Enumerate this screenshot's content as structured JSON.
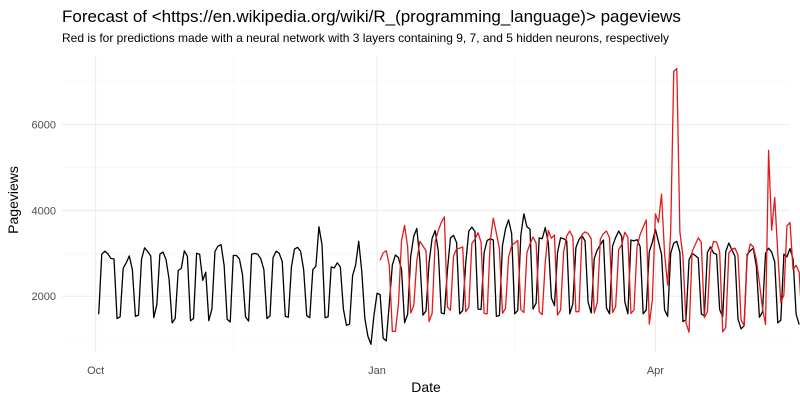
{
  "chart_data": {
    "type": "line",
    "title": "Forecast of <https://en.wikipedia.org/wiki/R_(programming_language)> pageviews",
    "subtitle": "Red is for predictions made with a neural network with 3 layers containing 9, 7, and 5 hidden neurons, respectively",
    "xlabel": "Date",
    "ylabel": "Pageviews",
    "x_ticks": [
      {
        "label": "Oct",
        "value": "2015-10-01"
      },
      {
        "label": "Jan",
        "value": "2016-01-01"
      },
      {
        "label": "Apr",
        "value": "2016-04-01"
      }
    ],
    "x_minor_ticks": [
      "2015-11-15",
      "2016-02-15"
    ],
    "y_ticks": [
      2000,
      4000,
      6000
    ],
    "y_minor_ticks": [
      1000,
      3000,
      5000,
      7000
    ],
    "xlim": [
      "2015-09-20",
      "2016-05-15"
    ],
    "ylim": [
      700,
      7600
    ],
    "grid": true,
    "series": [
      {
        "color": "#000000",
        "start": "2015-10-02",
        "values": [
          1580,
          2980,
          3050,
          2990,
          2880,
          2870,
          1480,
          1520,
          2650,
          2780,
          2940,
          2620,
          1530,
          1560,
          2860,
          3130,
          3040,
          2940,
          1500,
          1800,
          2980,
          3030,
          2860,
          2400,
          1380,
          1480,
          2600,
          2650,
          3060,
          2930,
          1430,
          1480,
          3000,
          2980,
          2370,
          2560,
          1430,
          1700,
          3040,
          3170,
          3200,
          2720,
          1460,
          1400,
          2950,
          2950,
          2870,
          2510,
          1520,
          1420,
          2980,
          3000,
          2980,
          2870,
          2620,
          1480,
          1540,
          2900,
          3050,
          3000,
          2810,
          1530,
          1510,
          2680,
          3100,
          3140,
          3050,
          2620,
          1550,
          1500,
          2620,
          2700,
          3620,
          3200,
          1500,
          1520,
          2680,
          2660,
          2780,
          2680,
          1700,
          1320,
          1350,
          2480,
          2730,
          3280,
          2580,
          1490,
          1070,
          880,
          1560,
          2070,
          2040,
          1020,
          960,
          1820,
          2730,
          2960,
          2900,
          2620,
          1380,
          1580,
          2930,
          3400,
          3580,
          2850,
          1560,
          1660,
          2780,
          3350,
          3530,
          3060,
          1610,
          1590,
          2600,
          3360,
          3420,
          3250,
          1590,
          1670,
          2780,
          3520,
          3610,
          3510,
          1700,
          1690,
          3020,
          3300,
          3340,
          3310,
          1530,
          1550,
          3180,
          3570,
          3780,
          3460,
          1590,
          1670,
          3420,
          3920,
          3620,
          3560,
          1700,
          1840,
          3360,
          3340,
          3600,
          3240,
          1960,
          1780,
          3020,
          3360,
          3340,
          3290,
          1590,
          1820,
          3130,
          3320,
          3410,
          3290,
          1860,
          1610,
          2880,
          3080,
          3200,
          3310,
          1730,
          1590,
          3170,
          3370,
          3520,
          3390,
          1870,
          1590,
          3310,
          3290,
          3320,
          3160,
          1590,
          1680,
          3040,
          3260,
          3560,
          3270,
          2980,
          1680,
          1530,
          3000,
          3240,
          3280,
          3020,
          1410,
          1450,
          2850,
          3000,
          2950,
          2890,
          1590,
          1540,
          3020,
          3150,
          3010,
          2970,
          1690,
          1520,
          3040,
          3240,
          3080,
          2930,
          1470,
          1240,
          1310,
          2980,
          3060,
          3120,
          2700,
          1510,
          1630,
          3000,
          3120,
          3030,
          2800,
          1380,
          1440,
          2980,
          2920,
          3110,
          2870,
          1580,
          1340
        ]
      },
      {
        "color": "#e31a1c",
        "start": "2016-01-02",
        "values": [
          2840,
          3010,
          3060,
          2720,
          1180,
          1180,
          1820,
          3300,
          3650,
          3150,
          1610,
          1780,
          2830,
          3280,
          3170,
          3060,
          1410,
          1600,
          3270,
          3530,
          3720,
          3850,
          1750,
          1670,
          2940,
          3100,
          3120,
          3150,
          1640,
          1740,
          3230,
          3330,
          3480,
          3260,
          1600,
          1590,
          3280,
          3820,
          3470,
          3110,
          1600,
          1720,
          2910,
          3180,
          3240,
          3300,
          1690,
          1620,
          3020,
          3220,
          3380,
          3240,
          1640,
          1570,
          2800,
          3530,
          3350,
          3430,
          1560,
          1680,
          3030,
          3410,
          3520,
          3380,
          1640,
          1640,
          3440,
          3500,
          3460,
          3340,
          1610,
          1850,
          3330,
          3460,
          3520,
          3360,
          1620,
          1760,
          3090,
          3200,
          3490,
          3370,
          1600,
          1680,
          3150,
          3440,
          3610,
          3780,
          1350,
          1910,
          3920,
          3720,
          4380,
          2980,
          2260,
          3520,
          7240,
          7310,
          3500,
          2940,
          1380,
          1160,
          3040,
          3200,
          3360,
          3260,
          1500,
          1640,
          3000,
          3280,
          3260,
          3040,
          1170,
          1270,
          3010,
          3100,
          3120,
          2960,
          1450,
          1310,
          2900,
          3220,
          3150,
          2850,
          2320,
          1720,
          1340,
          5400,
          3540,
          4300,
          3020,
          1850,
          2030,
          3640,
          3720,
          2620,
          2720,
          2560,
          1290,
          1360,
          2980,
          2900,
          3180,
          2990,
          1330,
          1220
        ]
      }
    ]
  }
}
